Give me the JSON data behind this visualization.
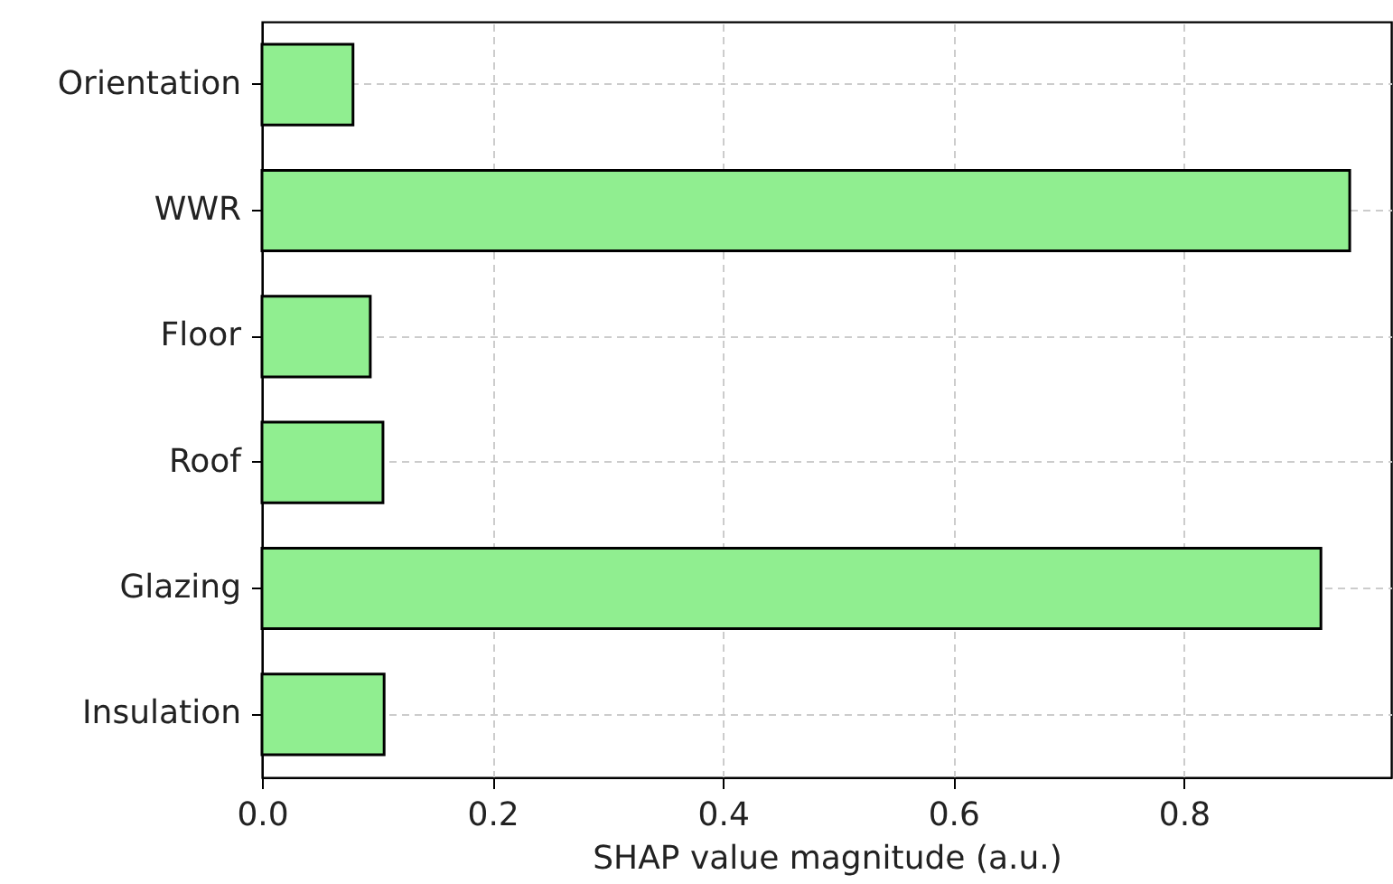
{
  "chart_data": {
    "type": "bar",
    "orientation": "horizontal",
    "xlabel": "SHAP value magnitude (a.u.)",
    "categories": [
      "Orientation",
      "WWR",
      "Floor",
      "Roof",
      "Glazing",
      "Insulation"
    ],
    "values": [
      0.079,
      0.944,
      0.094,
      0.105,
      0.919,
      0.106
    ],
    "color": "#90ee90",
    "xlim": [
      0,
      0.98
    ],
    "xticks": [
      {
        "value": 0,
        "label": "0.0"
      },
      0.2,
      0.4,
      0.6,
      0.8
    ],
    "grid": true
  }
}
